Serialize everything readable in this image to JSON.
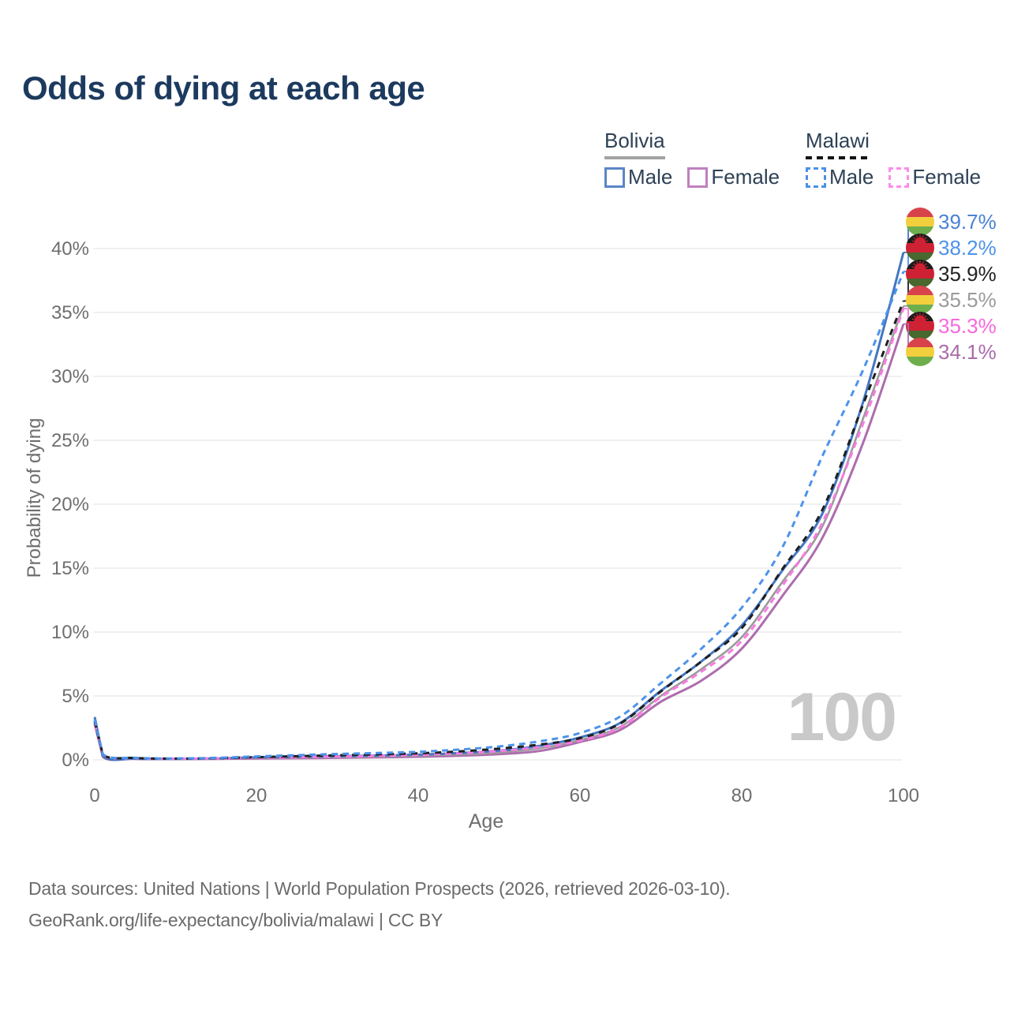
{
  "title": "Odds of dying at each age",
  "watermark": "100",
  "legend": {
    "groups": [
      {
        "country": "Bolivia",
        "line_style": "solid",
        "underline_color": "#a3a3a3",
        "items": [
          {
            "label": "Male",
            "color": "#5b86c6"
          },
          {
            "label": "Female",
            "color": "#c07fc0"
          }
        ]
      },
      {
        "country": "Malawi",
        "line_style": "dashed",
        "underline_color": "#141414",
        "items": [
          {
            "label": "Male",
            "color": "#4a90e8"
          },
          {
            "label": "Female",
            "color": "#fc8be9"
          }
        ]
      }
    ]
  },
  "footer": {
    "line1": "Data sources: United Nations | World Population Prospects (2026, retrieved 2026-03-10).",
    "line2": "GeoRank.org/life-expectancy/bolivia/malawi | CC BY"
  },
  "flags": {
    "bolivia": {
      "stripes": [
        "#d8434b",
        "#f2cf3c",
        "#6fae4d"
      ]
    },
    "malawi": {
      "stripes": [
        "#1d1d1b",
        "#ce2133",
        "#47682e"
      ],
      "sun": "#ce2133"
    }
  },
  "chart_data": {
    "type": "line",
    "title": "Odds of dying at each age",
    "xlabel": "Age",
    "ylabel": "Probability of dying",
    "xlim": [
      0,
      100
    ],
    "ylim": [
      0,
      42
    ],
    "grid": "horizontal",
    "gridline_color": "#e8e8e8",
    "tick_color": "#6e6e6e",
    "x_ticks": [
      {
        "label": "0",
        "value": 0
      },
      {
        "label": "20",
        "value": 20
      },
      {
        "label": "40",
        "value": 40
      },
      {
        "label": "60",
        "value": 60
      },
      {
        "label": "80",
        "value": 80
      },
      {
        "label": "100",
        "value": 100
      }
    ],
    "y_ticks": [
      {
        "label": "0%",
        "value": 0
      },
      {
        "label": "5%",
        "value": 5
      },
      {
        "label": "10%",
        "value": 10
      },
      {
        "label": "15%",
        "value": 15
      },
      {
        "label": "20%",
        "value": 20
      },
      {
        "label": "25%",
        "value": 25
      },
      {
        "label": "30%",
        "value": 30
      },
      {
        "label": "35%",
        "value": 35
      },
      {
        "label": "40%",
        "value": 40
      }
    ],
    "x": [
      0,
      1,
      5,
      10,
      15,
      20,
      25,
      30,
      35,
      40,
      45,
      50,
      55,
      60,
      65,
      70,
      75,
      80,
      85,
      90,
      95,
      100
    ],
    "series": [
      {
        "key": "bolivia_male",
        "name": "Bolivia Male",
        "country": "Bolivia",
        "sex": "male",
        "color": "#4377c2",
        "style": "solid",
        "width": 3,
        "values": [
          3.35,
          0.3,
          0.1,
          0.08,
          0.12,
          0.2,
          0.25,
          0.29,
          0.34,
          0.41,
          0.53,
          0.72,
          1.1,
          1.75,
          2.9,
          5.4,
          7.7,
          10.5,
          14.8,
          19.3,
          28.0,
          39.7
        ]
      },
      {
        "key": "bolivia_female",
        "name": "Bolivia Female",
        "country": "Bolivia",
        "sex": "female",
        "color": "#ad6dad",
        "style": "solid",
        "width": 3,
        "values": [
          2.8,
          0.24,
          0.08,
          0.06,
          0.08,
          0.11,
          0.13,
          0.16,
          0.2,
          0.25,
          0.33,
          0.45,
          0.7,
          1.4,
          2.35,
          4.55,
          6.2,
          8.7,
          12.8,
          17.4,
          24.8,
          34.1
        ]
      },
      {
        "key": "bolivia_all",
        "name": "Bolivia",
        "country": "Bolivia",
        "sex": "all",
        "color": "#9b9b9b",
        "style": "solid",
        "width": 2.6,
        "values": [
          3.1,
          0.27,
          0.09,
          0.07,
          0.1,
          0.15,
          0.19,
          0.22,
          0.27,
          0.33,
          0.43,
          0.58,
          0.9,
          1.55,
          2.6,
          5.0,
          7.1,
          9.6,
          13.9,
          18.3,
          26.7,
          35.5
        ]
      },
      {
        "key": "malawi_male",
        "name": "Malawi Male",
        "country": "Malawi",
        "sex": "male",
        "color": "#4d93ea",
        "style": "dashed",
        "dash": "8 6",
        "width": 3,
        "values": [
          3.15,
          0.45,
          0.16,
          0.11,
          0.16,
          0.27,
          0.37,
          0.46,
          0.54,
          0.63,
          0.8,
          1.05,
          1.45,
          2.1,
          3.4,
          6.0,
          8.7,
          11.9,
          16.6,
          23.8,
          30.5,
          38.2
        ]
      },
      {
        "key": "malawi_female",
        "name": "Malawi Female",
        "country": "Malawi",
        "sex": "female",
        "color": "#fb7ae2",
        "style": "dashed",
        "dash": "8 6",
        "width": 3,
        "values": [
          2.85,
          0.38,
          0.13,
          0.09,
          0.12,
          0.16,
          0.21,
          0.26,
          0.32,
          0.4,
          0.52,
          0.7,
          1.0,
          1.5,
          2.55,
          4.9,
          6.9,
          9.3,
          13.6,
          18.6,
          26.3,
          35.3
        ]
      },
      {
        "key": "malawi_all",
        "name": "Malawi",
        "country": "Malawi",
        "sex": "all",
        "color": "#1f1f1f",
        "style": "dashed",
        "dash": "8 7",
        "width": 3,
        "values": [
          3.0,
          0.42,
          0.15,
          0.1,
          0.14,
          0.21,
          0.29,
          0.36,
          0.43,
          0.51,
          0.66,
          0.88,
          1.2,
          1.7,
          2.85,
          5.35,
          7.7,
          10.3,
          14.9,
          19.6,
          27.8,
          35.9
        ]
      }
    ],
    "draw_order": [
      "bolivia_female",
      "bolivia_all",
      "bolivia_male",
      "malawi_female",
      "malawi_all",
      "malawi_male"
    ],
    "end_labels": [
      {
        "series": "bolivia_male",
        "text": "39.7%",
        "flag": "bolivia",
        "color": "#4a82d4"
      },
      {
        "series": "malawi_male",
        "text": "38.2%",
        "flag": "malawi",
        "color": "#4d93ea"
      },
      {
        "series": "malawi_all",
        "text": "35.9%",
        "flag": "malawi",
        "color": "#222222"
      },
      {
        "series": "bolivia_all",
        "text": "35.5%",
        "flag": "bolivia",
        "color": "#9b9b9b"
      },
      {
        "series": "malawi_female",
        "text": "35.3%",
        "flag": "malawi",
        "color": "#f768de"
      },
      {
        "series": "bolivia_female",
        "text": "34.1%",
        "flag": "bolivia",
        "color": "#a96ba9"
      }
    ],
    "legend_position": "top-right"
  }
}
